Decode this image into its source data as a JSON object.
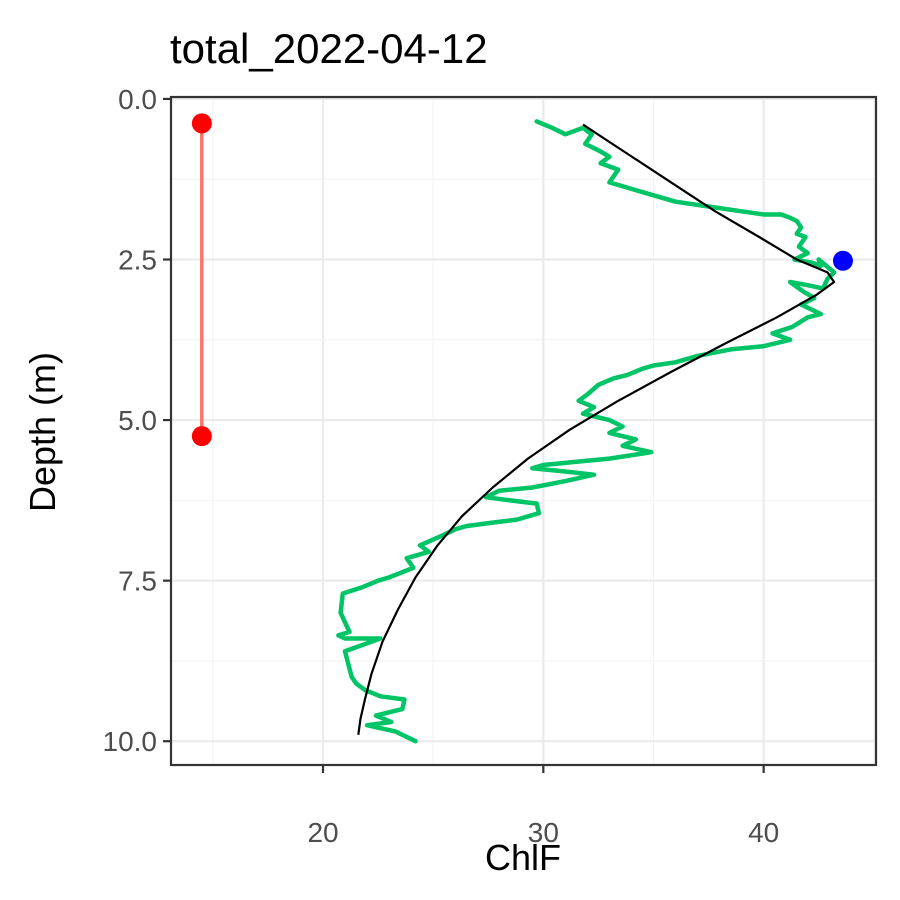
{
  "chart_data": {
    "type": "line",
    "title": "total_2022-04-12",
    "xlabel": "ChlF",
    "ylabel": "Depth (m)",
    "xlim": [
      13.1,
      45.1
    ],
    "ylim": [
      10.37,
      -0.03
    ],
    "y_reversed": true,
    "x_ticks": [
      20,
      30,
      40
    ],
    "x_tick_labels": [
      "20",
      "30",
      "40"
    ],
    "y_ticks": [
      0,
      2.5,
      5,
      7.5,
      10
    ],
    "y_tick_labels": [
      "0.0",
      "2.5",
      "5.0",
      "7.5",
      "10.0"
    ],
    "grid": true,
    "legend": "none",
    "colors": {
      "profile": "#00c465",
      "fit": "#000000",
      "peak": "#0000ff",
      "range": "#ff0000",
      "range_line": "#f8766d"
    },
    "series": [
      {
        "role": "profile",
        "x": [
          29.7,
          30.4,
          31.0,
          31.8,
          32.2,
          31.9,
          32.5,
          33.0,
          32.6,
          33.4,
          33.0,
          34.0,
          35.0,
          36.0,
          37.0,
          38.0,
          39.0,
          40.0,
          40.8,
          41.2,
          41.5,
          41.7,
          41.5,
          41.9,
          41.6,
          42.0,
          41.4,
          42.2,
          42.6,
          42.5,
          43.2,
          42.9,
          42.7,
          42.0,
          41.2,
          41.8,
          42.3,
          41.7,
          42.6,
          42.0,
          41.3,
          40.4,
          41.2,
          40.0,
          38.5,
          37.0,
          36.0,
          35.0,
          34.5,
          33.8,
          33.2,
          32.5,
          32.0,
          31.6,
          32.3,
          31.8,
          33.0,
          33.6,
          33.0,
          34.2,
          33.6,
          34.9,
          33.0,
          31.5,
          30.0,
          29.5,
          31.0,
          32.3,
          31.0,
          29.5,
          28.0,
          27.4,
          28.5,
          29.7,
          29.8,
          28.8,
          27.6,
          26.5,
          26.0,
          25.4,
          24.4,
          24.8,
          23.8,
          24.1,
          23.0,
          22.5,
          21.8,
          20.9,
          20.8,
          21.2,
          20.7,
          21.0,
          22.6,
          21.0,
          21.3,
          21.5,
          21.9,
          22.6,
          23.7,
          23.6,
          22.4,
          23.1,
          22.0,
          23.3,
          24.2
        ],
        "y": [
          0.35,
          0.45,
          0.55,
          0.45,
          0.55,
          0.7,
          0.8,
          0.9,
          1.0,
          1.1,
          1.3,
          1.4,
          1.5,
          1.6,
          1.65,
          1.7,
          1.75,
          1.8,
          1.8,
          1.85,
          1.9,
          2.0,
          2.1,
          2.15,
          2.3,
          2.4,
          2.5,
          2.55,
          2.6,
          2.5,
          2.7,
          2.8,
          2.95,
          2.9,
          2.85,
          3.0,
          3.1,
          3.2,
          3.35,
          3.4,
          3.55,
          3.65,
          3.75,
          3.85,
          3.9,
          4.0,
          4.1,
          4.15,
          4.2,
          4.3,
          4.35,
          4.45,
          4.6,
          4.7,
          4.8,
          4.9,
          5.0,
          5.1,
          5.2,
          5.3,
          5.4,
          5.5,
          5.6,
          5.65,
          5.7,
          5.75,
          5.8,
          5.85,
          5.95,
          6.05,
          6.1,
          6.2,
          6.25,
          6.3,
          6.45,
          6.55,
          6.6,
          6.65,
          6.7,
          6.8,
          6.95,
          7.05,
          7.15,
          7.3,
          7.45,
          7.5,
          7.6,
          7.7,
          8.0,
          8.3,
          8.35,
          8.4,
          8.4,
          8.6,
          9.0,
          9.1,
          9.2,
          9.3,
          9.35,
          9.5,
          9.6,
          9.7,
          9.75,
          9.85,
          10.0
        ]
      },
      {
        "role": "fit",
        "x": [
          31.8,
          33.8,
          35.8,
          37.8,
          39.8,
          41.5,
          42.9,
          43.2,
          42.4,
          40.6,
          38.3,
          35.8,
          33.4,
          31.2,
          29.3,
          27.7,
          26.3,
          25.2,
          24.2,
          23.4,
          22.7,
          22.2,
          21.9,
          21.7,
          21.6
        ],
        "y": [
          0.4,
          0.85,
          1.3,
          1.75,
          2.15,
          2.5,
          2.7,
          2.85,
          3.05,
          3.4,
          3.8,
          4.25,
          4.7,
          5.15,
          5.6,
          6.05,
          6.5,
          6.95,
          7.45,
          7.95,
          8.45,
          8.95,
          9.35,
          9.65,
          9.9
        ]
      },
      {
        "role": "peak",
        "x": [
          43.6
        ],
        "y": [
          2.52
        ]
      },
      {
        "role": "range",
        "x": [
          14.5,
          14.5
        ],
        "y": [
          0.38,
          5.25
        ]
      }
    ]
  }
}
